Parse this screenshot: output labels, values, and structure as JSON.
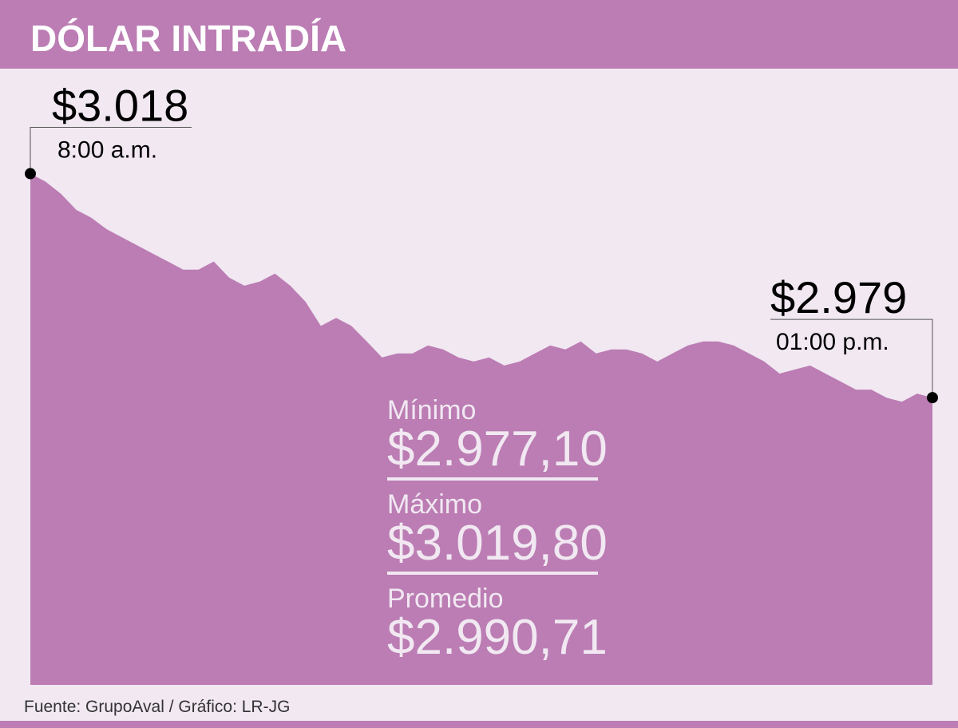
{
  "chart_data": {
    "type": "area",
    "title": "DÓLAR INTRADÍA",
    "categories": [
      "8:00 a.m.",
      null,
      null,
      null,
      null,
      null,
      null,
      null,
      null,
      null,
      null,
      null,
      null,
      null,
      null,
      null,
      null,
      null,
      null,
      null,
      null,
      null,
      null,
      null,
      null,
      null,
      null,
      null,
      null,
      null,
      null,
      null,
      null,
      null,
      null,
      null,
      null,
      null,
      null,
      null,
      null,
      null,
      null,
      null,
      null,
      null,
      null,
      null,
      null,
      null,
      null,
      null,
      null,
      null,
      null,
      null,
      null,
      null,
      null,
      "01:00 p.m."
    ],
    "values": [
      3018.0,
      3016.6,
      3014.5,
      3011.7,
      3010.3,
      3008.3,
      3006.9,
      3005.5,
      3004.1,
      3002.7,
      3001.3,
      3001.3,
      3002.7,
      2999.9,
      2998.5,
      2999.2,
      3000.6,
      2998.5,
      2995.7,
      2991.5,
      2992.9,
      2991.5,
      2988.8,
      2986.0,
      2986.7,
      2986.7,
      2988.1,
      2987.4,
      2986.0,
      2985.3,
      2986.0,
      2984.6,
      2985.3,
      2986.7,
      2988.1,
      2987.4,
      2988.8,
      2986.7,
      2987.4,
      2987.4,
      2986.7,
      2985.3,
      2986.7,
      2988.1,
      2988.8,
      2988.8,
      2988.1,
      2986.7,
      2985.3,
      2983.2,
      2983.9,
      2984.6,
      2983.2,
      2981.8,
      2980.4,
      2980.4,
      2979.0,
      2978.3,
      2979.7,
      2979.0
    ],
    "value_labels": [
      "$3.018",
      null,
      null,
      null,
      null,
      null,
      null,
      null,
      null,
      null,
      null,
      null,
      null,
      null,
      null,
      null,
      null,
      null,
      null,
      null,
      null,
      null,
      null,
      null,
      null,
      null,
      null,
      null,
      null,
      null,
      null,
      null,
      null,
      null,
      null,
      null,
      null,
      null,
      null,
      null,
      null,
      null,
      null,
      null,
      null,
      null,
      null,
      null,
      null,
      null,
      null,
      null,
      null,
      null,
      null,
      null,
      null,
      null,
      null,
      "$2.979"
    ],
    "color": "#bb7db3",
    "ylim": [
      2929,
      3036
    ],
    "stats": [
      {
        "label": "Mínimo",
        "value": "$2.977,10"
      },
      {
        "label": "Máximo",
        "value": "$3.019,80"
      },
      {
        "label": "Promedio",
        "value": "$2.990,71"
      }
    ],
    "source": "Fuente:  GrupoAval / Gráfico: LR-JG"
  }
}
